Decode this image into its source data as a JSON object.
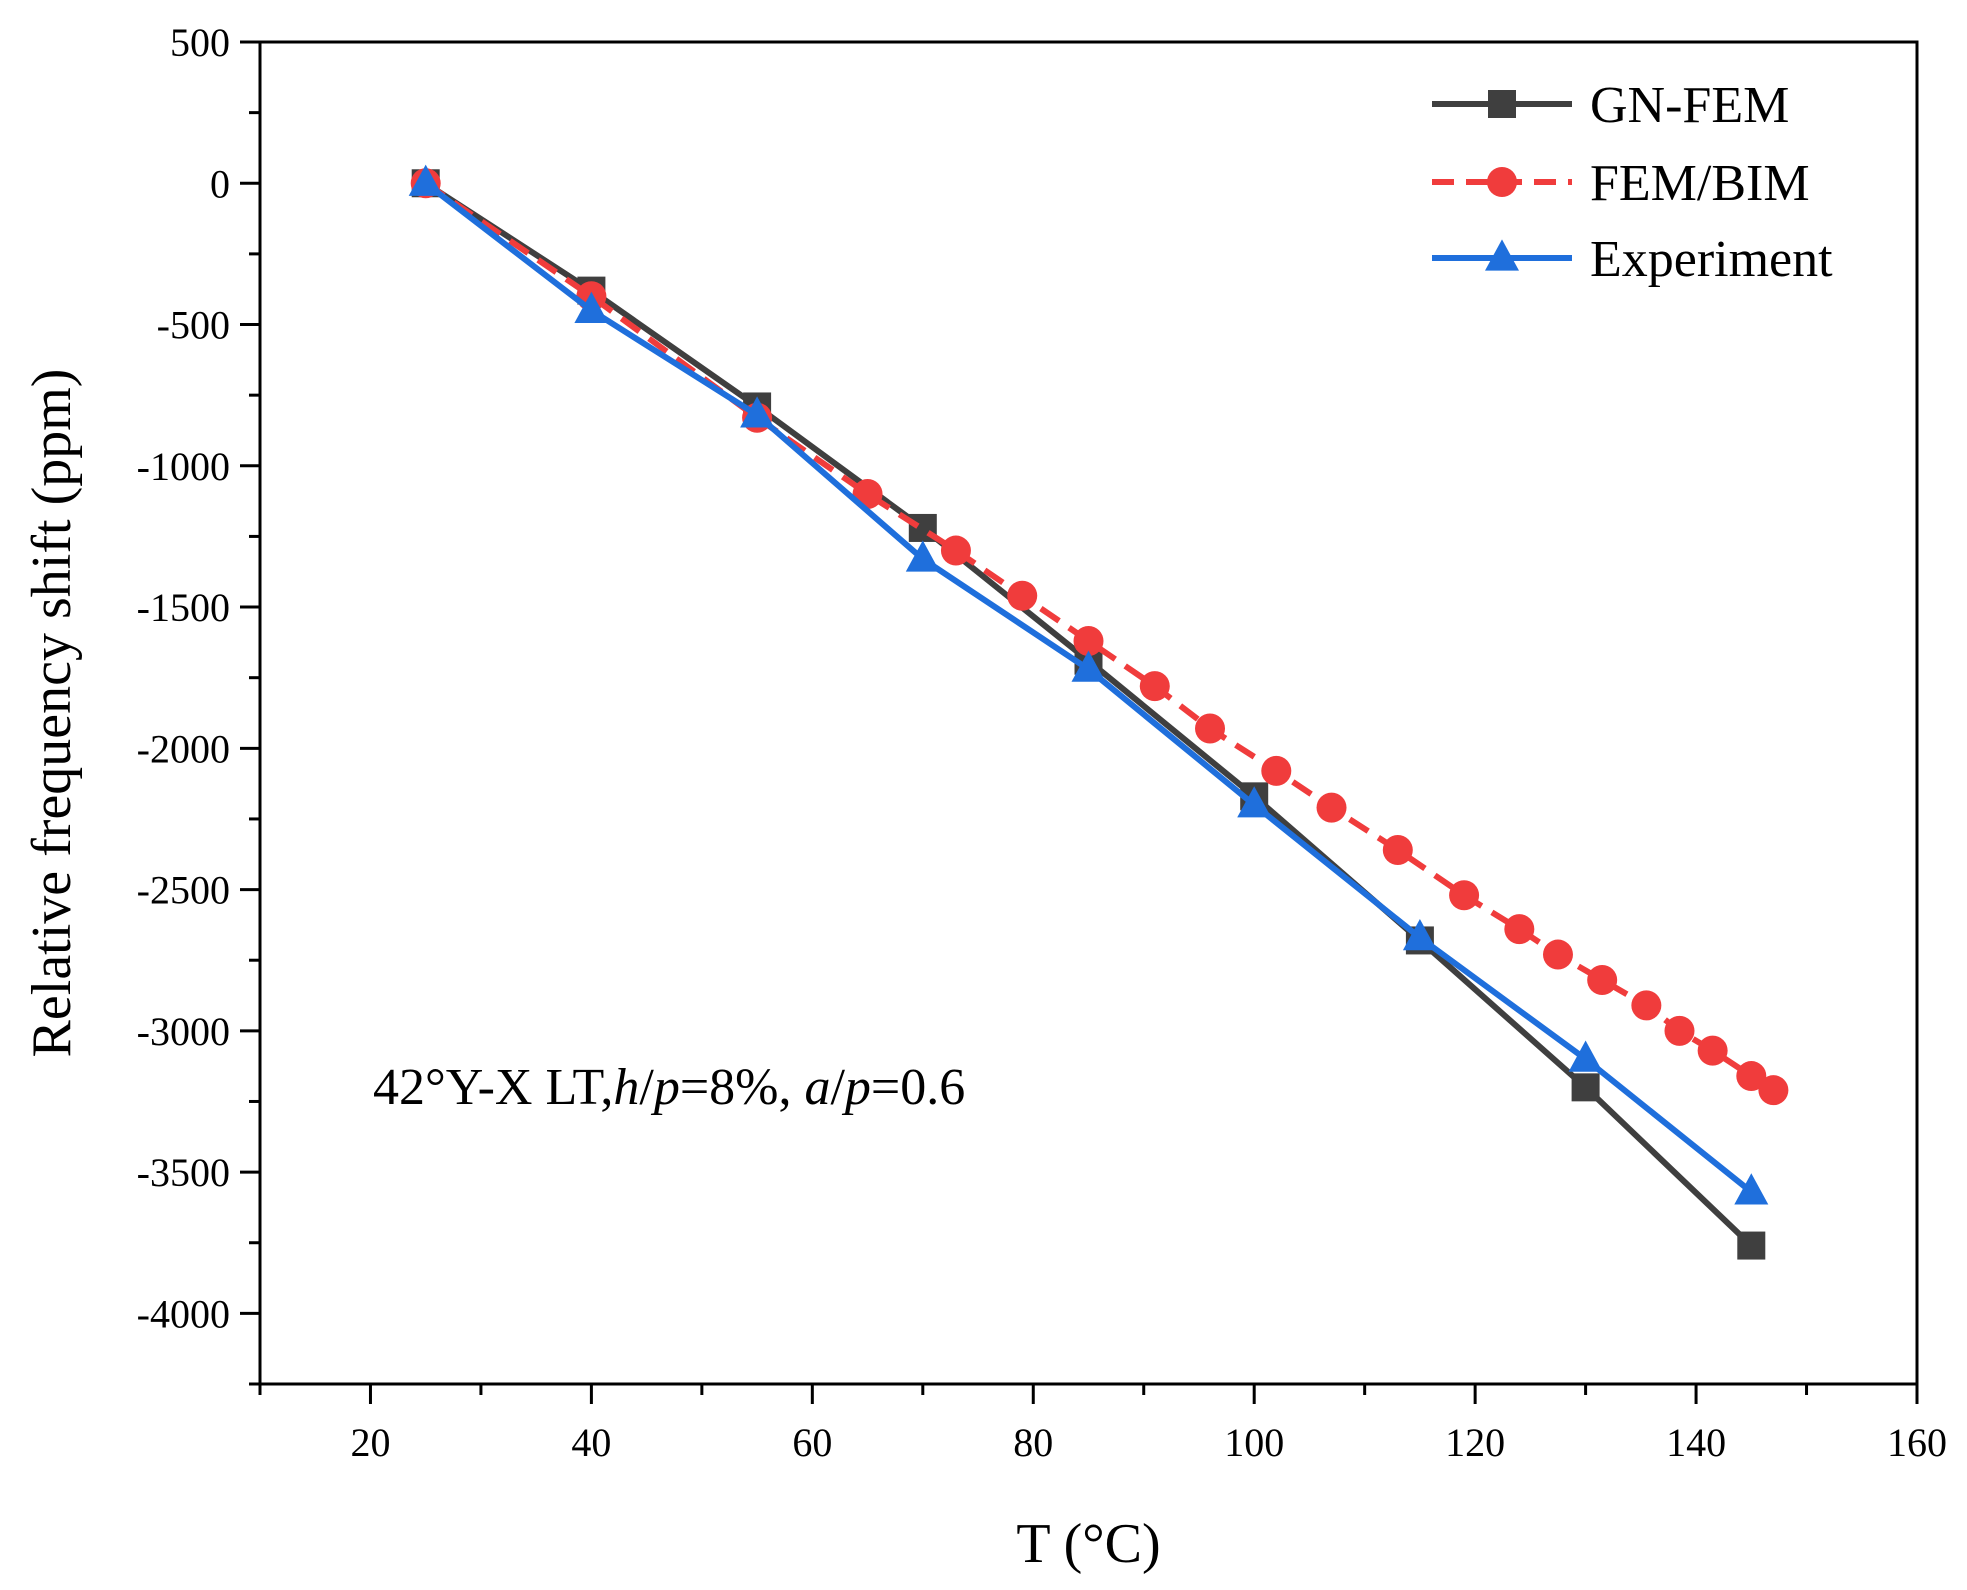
{
  "chart_data": {
    "type": "line",
    "title": "",
    "xlabel": "T (°C)",
    "ylabel": "Relative frequency shift (ppm)",
    "xlim": [
      10,
      160
    ],
    "ylim": [
      -4250,
      500
    ],
    "x_ticks": [
      20,
      40,
      60,
      80,
      100,
      120,
      140,
      160
    ],
    "x_tick_labels": [
      "20",
      "40",
      "60",
      "80",
      "100",
      "120",
      "140",
      "160"
    ],
    "y_ticks": [
      500,
      0,
      -500,
      -1000,
      -1500,
      -2000,
      -2500,
      -3000,
      -3500,
      -4000
    ],
    "y_tick_labels": [
      "500",
      "0",
      "-500",
      "-1000",
      "-1500",
      "-2000",
      "-2500",
      "-3000",
      "-3500",
      "-4000"
    ],
    "grid": false,
    "legend_position": "top-right",
    "annotation": {
      "prefix": "42°Y-X LT,",
      "h": "h",
      "slash1": "/",
      "p1": "p",
      "mid": "=8%, ",
      "a": "a",
      "slash2": "/",
      "p2": "p",
      "suffix": "=0.6"
    },
    "series": [
      {
        "name": "GN-FEM",
        "color": "#3f3f3f",
        "marker": "square",
        "dash": "solid",
        "x": [
          25,
          40,
          55,
          70,
          85,
          100,
          115,
          130,
          145
        ],
        "y": [
          0,
          -380,
          -790,
          -1220,
          -1690,
          -2170,
          -2680,
          -3200,
          -3760
        ]
      },
      {
        "name": "FEM/BIM",
        "color": "#f03c3c",
        "marker": "circle",
        "dash": "dash",
        "x": [
          25,
          40,
          55,
          65,
          73,
          79,
          85,
          91,
          96,
          102,
          107,
          113,
          119,
          124,
          127.5,
          131.5,
          135.5,
          138.5,
          141.5,
          145,
          147
        ],
        "y": [
          0,
          -400,
          -830,
          -1100,
          -1300,
          -1460,
          -1620,
          -1780,
          -1930,
          -2080,
          -2210,
          -2360,
          -2520,
          -2640,
          -2730,
          -2820,
          -2910,
          -3000,
          -3070,
          -3160,
          -3210
        ]
      },
      {
        "name": "Experiment",
        "color": "#1f6fdc",
        "marker": "triangle",
        "dash": "solid",
        "x": [
          25,
          40,
          55,
          70,
          85,
          100,
          115,
          130,
          145
        ],
        "y": [
          0,
          -450,
          -820,
          -1330,
          -1720,
          -2200,
          -2670,
          -3100,
          -3570
        ]
      }
    ]
  }
}
